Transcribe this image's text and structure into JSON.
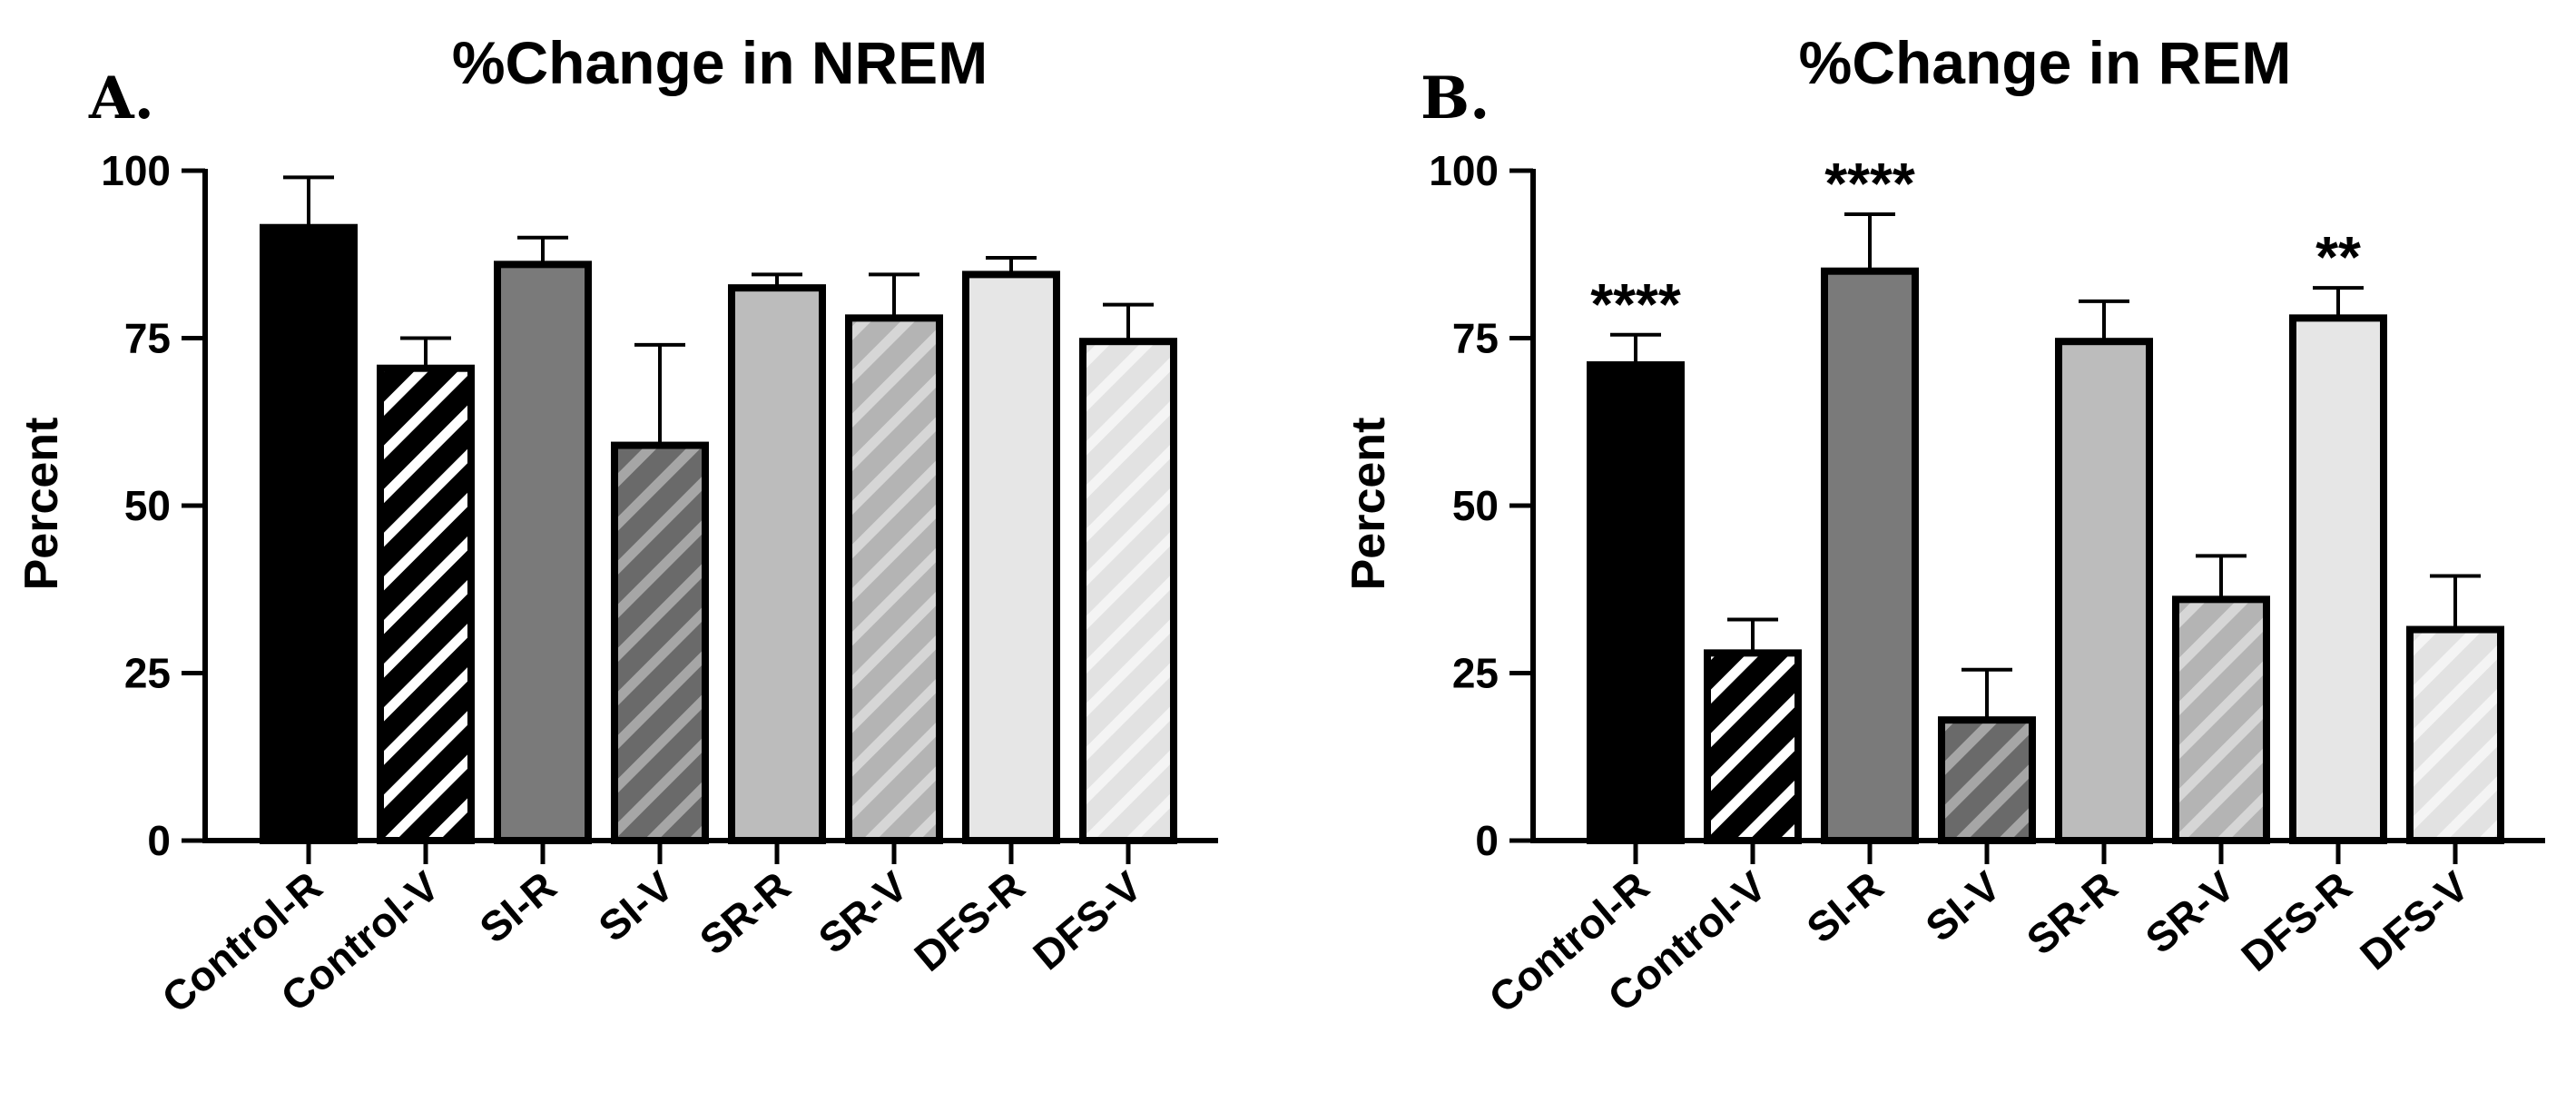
{
  "colors": {
    "black": "#000000",
    "control_v_stripe": "#ffffff",
    "si": "#7a7a7a",
    "sr": "#bcbcbc",
    "dfs": "#e6e6e6"
  },
  "chart_data": [
    {
      "panel": "A.",
      "type": "bar",
      "title": "%Change in NREM",
      "ylabel": "Percent",
      "xlabel": "",
      "ylim": [
        0,
        100
      ],
      "yticks": [
        "0",
        "25",
        "50",
        "75",
        "100"
      ],
      "grid": false,
      "categories": [
        "Control-R",
        "Control-V",
        "SI-R",
        "SI-V",
        "SR-R",
        "SR-V",
        "DFS-R",
        "DFS-V"
      ],
      "values": [
        91.5,
        70.5,
        86,
        59,
        82.5,
        78,
        84.5,
        74.5
      ],
      "errors": [
        7.5,
        4.5,
        4,
        15,
        2,
        6.5,
        2.5,
        5.5
      ],
      "significance": [
        "",
        "",
        "",
        "",
        "",
        "",
        "",
        ""
      ]
    },
    {
      "panel": "B.",
      "type": "bar",
      "title": "%Change in REM",
      "ylabel": "Percent",
      "xlabel": "",
      "ylim": [
        0,
        100
      ],
      "yticks": [
        "0",
        "25",
        "50",
        "75",
        "100"
      ],
      "grid": false,
      "categories": [
        "Control-R",
        "Control-V",
        "SI-R",
        "SI-V",
        "SR-R",
        "SR-V",
        "DFS-R",
        "DFS-V"
      ],
      "values": [
        71,
        28,
        85,
        18,
        74.5,
        36,
        78,
        31.5
      ],
      "errors": [
        4.5,
        5,
        8.5,
        7.5,
        6,
        6.5,
        4.5,
        8
      ],
      "significance": [
        "****",
        "",
        "****",
        "",
        "",
        "",
        "**",
        ""
      ]
    }
  ]
}
